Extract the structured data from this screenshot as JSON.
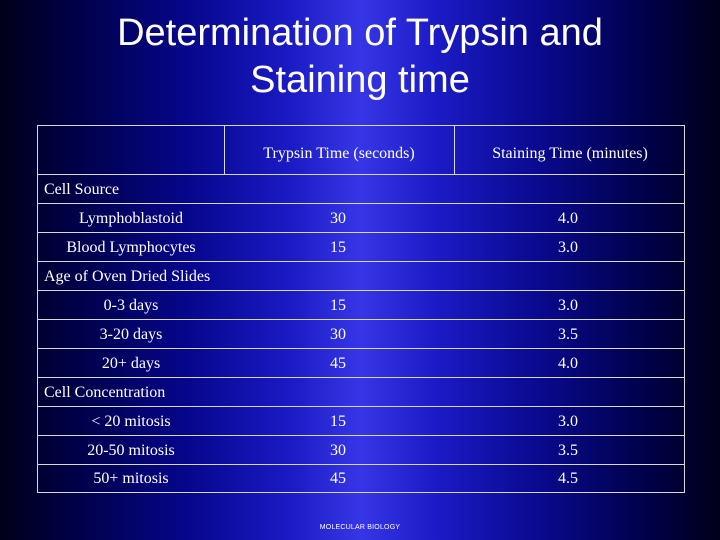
{
  "slide": {
    "title": "Determination of Trypsin and\nStaining time",
    "footer": "MOLECULAR BIOLOGY"
  },
  "table": {
    "headers": [
      "",
      "Trypsin Time (seconds)",
      "Staining Time (minutes)"
    ],
    "sections": [
      {
        "label": "Cell Source",
        "rows": [
          [
            "Lymphoblastoid",
            "30",
            "4.0"
          ],
          [
            "Blood Lymphocytes",
            "15",
            "3.0"
          ]
        ]
      },
      {
        "label": "Age of Oven Dried Slides",
        "rows": [
          [
            "0-3 days",
            "15",
            "3.0"
          ],
          [
            "3-20 days",
            "30",
            "3.5"
          ],
          [
            "20+ days",
            "45",
            "4.0"
          ]
        ]
      },
      {
        "label": "Cell Concentration",
        "rows": [
          [
            "< 20 mitosis",
            "15",
            "3.0"
          ],
          [
            "20-50 mitosis",
            "30",
            "3.5"
          ],
          [
            "50+ mitosis",
            "45",
            "4.5"
          ]
        ]
      }
    ]
  }
}
